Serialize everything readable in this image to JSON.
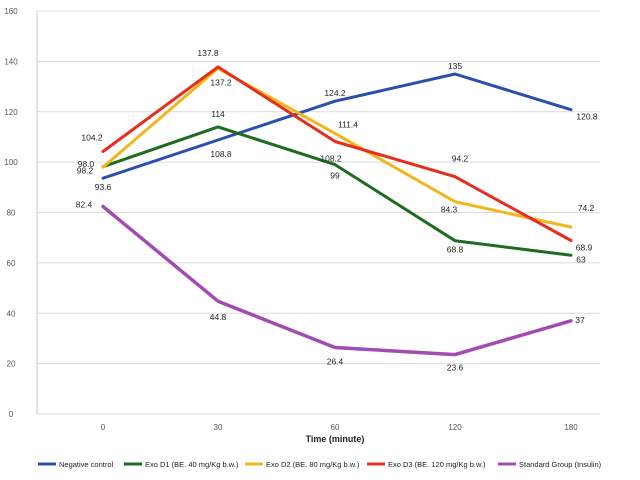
{
  "chart_data": {
    "type": "line",
    "xlabel": "Time (minute)",
    "ylabel": "",
    "categories": [
      "0",
      "30",
      "60",
      "120",
      "180"
    ],
    "ylim": [
      0,
      160
    ],
    "yticks": [
      "0",
      "20",
      "40",
      "60",
      "80",
      "100",
      "120",
      "140",
      "160"
    ],
    "grid": true,
    "legend_position": "bottom",
    "series": [
      {
        "name": "Negative control",
        "color": "#2a4fb0",
        "values": [
          93.6,
          108.8,
          124.2,
          135,
          120.8
        ],
        "labels": [
          "93.6",
          "108.8",
          "124.2",
          "135",
          "120.8"
        ]
      },
      {
        "name": "Exo D1 (BE. 40 mg/Kg b.w.)",
        "color": "#1f6b22",
        "values": [
          98.2,
          114,
          99,
          68.8,
          63
        ],
        "labels": [
          "98.2",
          "114",
          "99",
          "68.8",
          "63"
        ]
      },
      {
        "name": "Exo D2 (BE. 80 mg/Kg b.w.)",
        "color": "#f2b51c",
        "values": [
          98.0,
          137.2,
          111.4,
          84.3,
          74.2
        ],
        "labels": [
          "98.0",
          "137.2",
          "111.4",
          "84.3",
          "74.2"
        ]
      },
      {
        "name": "Exo D3 (BE. 120 mg/Kg b.w.)",
        "color": "#e62d1e",
        "values": [
          104.2,
          137.8,
          108.2,
          94.2,
          68.9
        ],
        "labels": [
          "104.2",
          "137.8",
          "108.2",
          "94.2",
          "68.9"
        ]
      },
      {
        "name": "Standard Group (Insulin)",
        "color": "#a34bb5",
        "values": [
          82.4,
          44.8,
          26.4,
          23.6,
          37
        ],
        "labels": [
          "82.4",
          "44.8",
          "26.4",
          "23.6",
          "37"
        ]
      }
    ]
  }
}
